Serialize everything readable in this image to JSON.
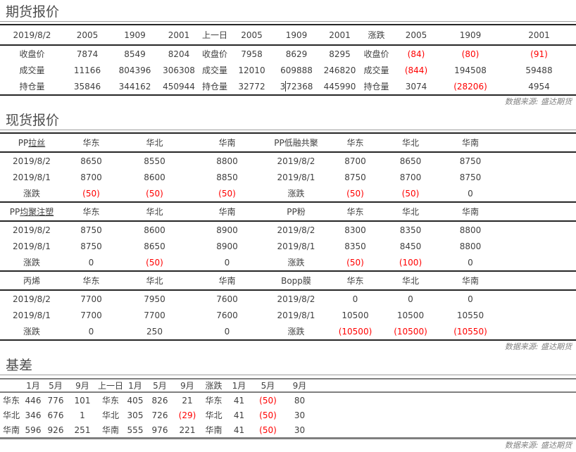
{
  "colors": {
    "negative_value": "#ff0000",
    "body_text": "#404040",
    "dark_border": "#262626",
    "gray_border": "#7f7f7f",
    "source_text": "#808080"
  },
  "futures": {
    "title": "期货报价",
    "header": [
      "2019/8/2",
      "2005",
      "1909",
      "2001",
      "上一日",
      "2005",
      "1909",
      "2001",
      "涨跌",
      "2005",
      "1909",
      "2001"
    ],
    "rows": [
      [
        "收盘价",
        "7874",
        "8549",
        "8204",
        "收盘价",
        "7958",
        "8629",
        "8295",
        "收盘价",
        "(84)",
        "(80)",
        "(91)"
      ],
      [
        "成交量",
        "11166",
        "804396",
        "306308",
        "成交量",
        "12010",
        "609888",
        "246820",
        "成交量",
        "(844)",
        "194508",
        "59488"
      ],
      [
        "持仓量",
        "35846",
        "344162",
        "450944",
        "持仓量",
        "32772",
        "372368",
        "445990",
        "持仓量",
        "3074",
        "(28206)",
        "4954"
      ]
    ],
    "edit_cursor": {
      "row_index": 2,
      "col_index": 6,
      "after_chars": 1
    },
    "source": "数据来源: 盛达期货"
  },
  "spot": {
    "title": "现货报价",
    "regions": [
      "华东",
      "华北",
      "华南"
    ],
    "bands": [
      {
        "left": {
          "label": "PP拉丝",
          "underline_suffix": "拉丝",
          "rows": [
            [
              "2019/8/2",
              "8650",
              "8550",
              "8800"
            ],
            [
              "2019/8/1",
              "8700",
              "8600",
              "8850"
            ],
            [
              "涨跌",
              "(50)",
              "(50)",
              "(50)"
            ]
          ]
        },
        "right": {
          "label": "PP低融共聚",
          "underline_suffix": "",
          "rows": [
            [
              "2019/8/2",
              "8700",
              "8650",
              "8750"
            ],
            [
              "2019/8/1",
              "8750",
              "8700",
              "8750"
            ],
            [
              "涨跌",
              "(50)",
              "(50)",
              "0"
            ]
          ]
        }
      },
      {
        "left": {
          "label": "PP均聚注塑",
          "underline_suffix": "均聚注塑",
          "rows": [
            [
              "2019/8/2",
              "8750",
              "8600",
              "8900"
            ],
            [
              "2019/8/1",
              "8750",
              "8650",
              "8900"
            ],
            [
              "涨跌",
              "0",
              "(50)",
              "0"
            ]
          ]
        },
        "right": {
          "label": "PP粉",
          "underline_suffix": "",
          "rows": [
            [
              "2019/8/2",
              "8300",
              "8350",
              "8800"
            ],
            [
              "2019/8/1",
              "8350",
              "8450",
              "8800"
            ],
            [
              "涨跌",
              "(50)",
              "(100)",
              "0"
            ]
          ]
        }
      },
      {
        "left": {
          "label": "丙烯",
          "underline_suffix": "",
          "rows": [
            [
              "2019/8/2",
              "7700",
              "7950",
              "7600"
            ],
            [
              "2019/8/1",
              "7700",
              "7700",
              "7600"
            ],
            [
              "涨跌",
              "0",
              "250",
              "0"
            ]
          ]
        },
        "right": {
          "label": "Bopp膜",
          "underline_suffix": "",
          "rows": [
            [
              "2019/8/2",
              "0",
              "0",
              "0"
            ],
            [
              "2019/8/1",
              "10500",
              "10500",
              "10550"
            ],
            [
              "涨跌",
              "(10500)",
              "(10500)",
              "(10550)"
            ]
          ]
        }
      }
    ],
    "source": "数据来源: 盛达期货"
  },
  "basis": {
    "title": "基差",
    "header": [
      "",
      "1月",
      "5月",
      "9月",
      "上一日",
      "1月",
      "5月",
      "9月",
      "涨跌",
      "1月",
      "5月",
      "9月"
    ],
    "rows": [
      [
        "华东",
        "446",
        "776",
        "101",
        "华东",
        "405",
        "826",
        "21",
        "华东",
        "41",
        "(50)",
        "80"
      ],
      [
        "华北",
        "346",
        "676",
        "1",
        "华北",
        "305",
        "726",
        "(29)",
        "华北",
        "41",
        "(50)",
        "30"
      ],
      [
        "华南",
        "596",
        "926",
        "251",
        "华南",
        "555",
        "976",
        "221",
        "华南",
        "41",
        "(50)",
        "30"
      ]
    ],
    "source": "数据来源: 盛达期货"
  }
}
